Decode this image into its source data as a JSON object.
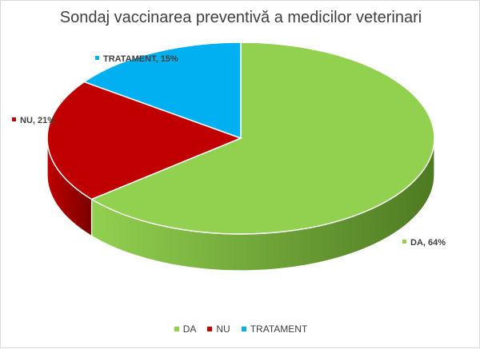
{
  "chart_data": {
    "type": "pie",
    "title": "Sondaj vaccinarea preventivă a medicilor veterinari",
    "categories": [
      "DA",
      "NU",
      "TRATAMENT"
    ],
    "values": [
      64,
      21,
      15
    ],
    "labels": [
      "DA, 64%",
      "NU, 21%",
      "TRATAMENT, 15%"
    ],
    "colors": [
      "#92d050",
      "#c00000",
      "#00b0f0"
    ],
    "side_colors": [
      "#4e7a22",
      "#7a0000",
      "#0070a0"
    ],
    "legend_position": "bottom",
    "three_d": true
  }
}
